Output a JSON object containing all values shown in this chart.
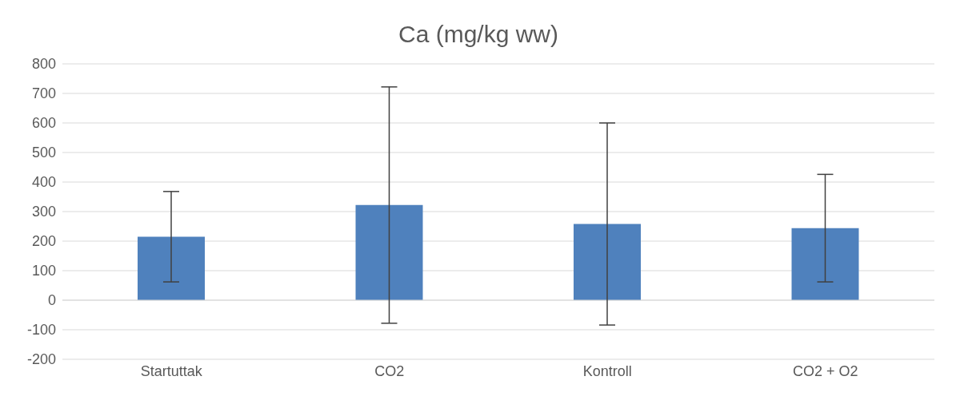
{
  "chart_data": {
    "type": "bar",
    "title": "Ca (mg/kg ww)",
    "categories": [
      "Startuttak",
      "CO2",
      "Kontroll",
      "CO2 + O2"
    ],
    "values": [
      215,
      322,
      258,
      244
    ],
    "errors": [
      153,
      400,
      342,
      182
    ],
    "color": "#4f81bd",
    "ylim": [
      -200,
      800
    ],
    "yticks": [
      -200,
      -100,
      0,
      100,
      200,
      300,
      400,
      500,
      600,
      700,
      800
    ],
    "grid": "y"
  }
}
